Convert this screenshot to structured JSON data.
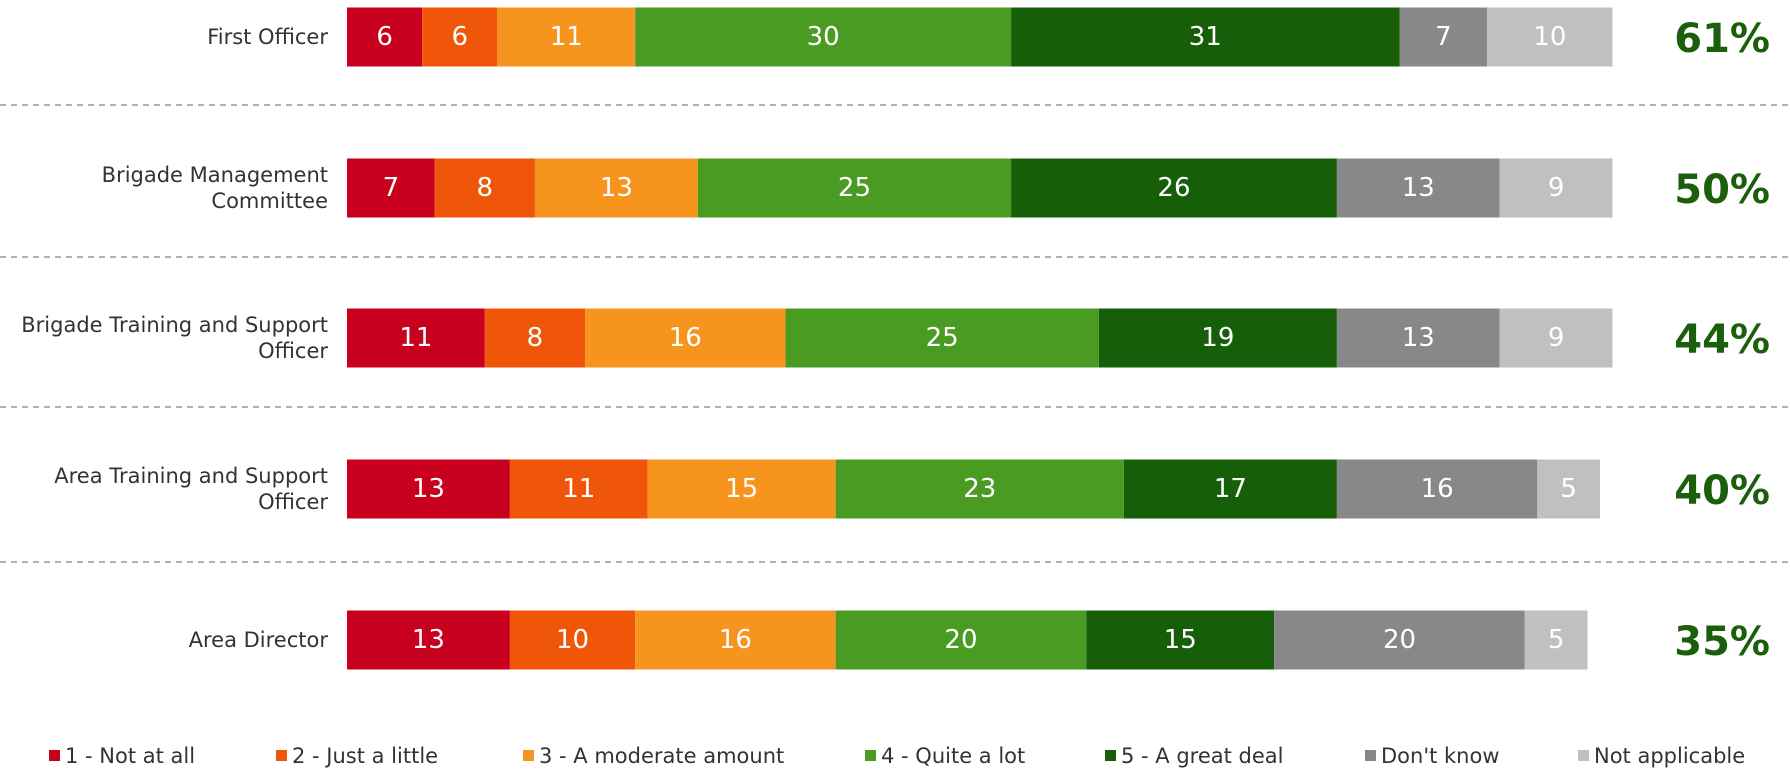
{
  "chart_data": {
    "type": "stacked-bar-horizontal",
    "categories": [
      "First Officer",
      "Brigade Management Committee",
      "Brigade Training and Support Officer",
      "Area Training and Support Officer",
      "Area Director"
    ],
    "xlim": [
      0,
      100
    ],
    "series": [
      {
        "name": "1 - Not at all",
        "color": "#c8001e",
        "values": [
          6,
          7,
          11,
          13,
          13
        ]
      },
      {
        "name": "2 - Just a little",
        "color": "#f0560a",
        "values": [
          6,
          8,
          8,
          11,
          10
        ]
      },
      {
        "name": "3 - A moderate amount",
        "color": "#f7941e",
        "values": [
          11,
          13,
          16,
          15,
          16
        ]
      },
      {
        "name": "4 - Quite a lot",
        "color": "#4a9b22",
        "values": [
          30,
          25,
          25,
          23,
          20
        ]
      },
      {
        "name": "5 - A great deal",
        "color": "#165e08",
        "values": [
          31,
          26,
          19,
          17,
          15
        ]
      },
      {
        "name": "Don't know",
        "color": "#888888",
        "values": [
          7,
          13,
          13,
          16,
          20
        ]
      },
      {
        "name": "Not applicable",
        "color": "#c0c0c0",
        "values": [
          10,
          9,
          9,
          5,
          5
        ]
      }
    ],
    "net": {
      "color": "#1b5e0c",
      "values": [
        61,
        50,
        44,
        40,
        35
      ],
      "value_labels": [
        "61%",
        "50%",
        "44%",
        "40%",
        "35%"
      ]
    }
  }
}
